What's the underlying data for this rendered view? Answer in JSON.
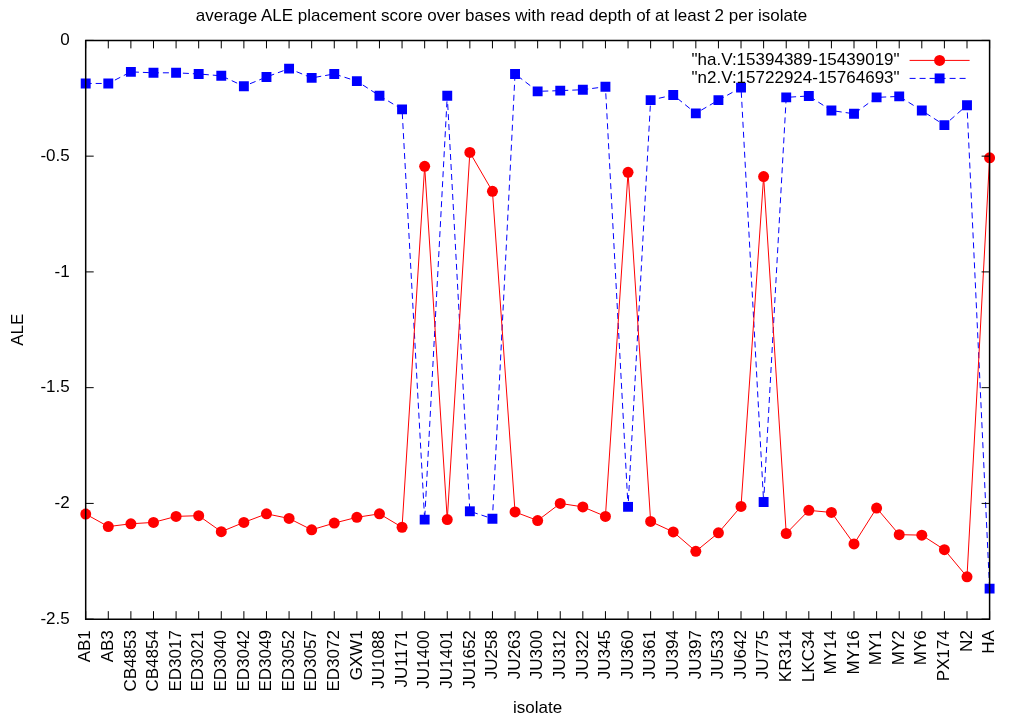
{
  "chart_data": {
    "type": "line",
    "title": "average ALE placement score over bases with read depth of at least 2 per isolate",
    "xlabel": "isolate",
    "ylabel": "ALE",
    "categories": [
      "AB1",
      "AB3",
      "CB4853",
      "CB4854",
      "ED3017",
      "ED3021",
      "ED3040",
      "ED3042",
      "ED3049",
      "ED3052",
      "ED3057",
      "ED3072",
      "GXW1",
      "JU1088",
      "JU1171",
      "JU1400",
      "JU1401",
      "JU1652",
      "JU258",
      "JU263",
      "JU300",
      "JU312",
      "JU322",
      "JU345",
      "JU360",
      "JU361",
      "JU394",
      "JU397",
      "JU533",
      "JU642",
      "JU775",
      "KR314",
      "LKC34",
      "MY14",
      "MY16",
      "MY1",
      "MY2",
      "MY6",
      "PX174",
      "N2",
      "HA"
    ],
    "series": [
      {
        "name": "\"ha.V:15394389-15439019\"",
        "color": "#ff0000",
        "marker": "circle",
        "line_style": "solid",
        "values": [
          -2.046,
          -2.1,
          -2.088,
          -2.082,
          -2.056,
          -2.053,
          -2.122,
          -2.082,
          -2.045,
          -2.065,
          -2.114,
          -2.085,
          -2.06,
          -2.045,
          -2.103,
          -0.544,
          -2.07,
          -0.484,
          -0.652,
          -2.037,
          -2.074,
          -2.0,
          -2.015,
          -2.056,
          -0.57,
          -2.078,
          -2.123,
          -2.207,
          -2.127,
          -2.013,
          -0.588,
          -2.13,
          -2.03,
          -2.039,
          -2.175,
          -2.02,
          -2.135,
          -2.137,
          -2.2,
          -2.317,
          -0.507
        ]
      },
      {
        "name": "\"n2.V:15722924-15764693\"",
        "color": "#0000ff",
        "marker": "square",
        "line_style": "dashed",
        "values": [
          -0.186,
          -0.186,
          -0.136,
          -0.14,
          -0.14,
          -0.145,
          -0.153,
          -0.198,
          -0.158,
          -0.122,
          -0.162,
          -0.145,
          -0.176,
          -0.239,
          -0.298,
          -2.07,
          -0.239,
          -2.034,
          -2.066,
          -0.145,
          -0.22,
          -0.217,
          -0.213,
          -0.2,
          -2.015,
          -0.258,
          -0.236,
          -0.315,
          -0.258,
          -0.204,
          -1.994,
          -0.246,
          -0.24,
          -0.303,
          -0.317,
          -0.246,
          -0.242,
          -0.303,
          -0.366,
          -0.28,
          -2.368
        ]
      }
    ],
    "ylim": [
      -2.5,
      0
    ],
    "yticks": [
      0,
      -0.5,
      -1,
      -1.5,
      -2,
      -2.5
    ],
    "legend": "top right"
  }
}
